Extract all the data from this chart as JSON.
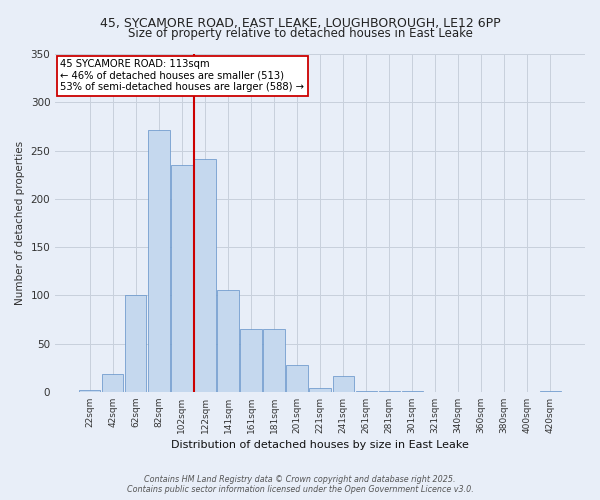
{
  "title1": "45, SYCAMORE ROAD, EAST LEAKE, LOUGHBOROUGH, LE12 6PP",
  "title2": "Size of property relative to detached houses in East Leake",
  "xlabel": "Distribution of detached houses by size in East Leake",
  "ylabel": "Number of detached properties",
  "bar_labels": [
    "22sqm",
    "42sqm",
    "62sqm",
    "82sqm",
    "102sqm",
    "122sqm",
    "141sqm",
    "161sqm",
    "181sqm",
    "201sqm",
    "221sqm",
    "241sqm",
    "261sqm",
    "281sqm",
    "301sqm",
    "321sqm",
    "340sqm",
    "360sqm",
    "380sqm",
    "400sqm",
    "420sqm"
  ],
  "bar_values": [
    2,
    18,
    100,
    271,
    235,
    241,
    105,
    65,
    65,
    28,
    4,
    16,
    1,
    1,
    1,
    0,
    0,
    0,
    0,
    0,
    1
  ],
  "bar_color": "#c5d8ee",
  "bar_edge_color": "#6090c8",
  "bg_color": "#e8eef8",
  "grid_color": "#c8d0dc",
  "annotation_text_line1": "45 SYCAMORE ROAD: 113sqm",
  "annotation_text_line2": "← 46% of detached houses are smaller (513)",
  "annotation_text_line3": "53% of semi-detached houses are larger (588) →",
  "red_line_color": "#cc0000",
  "annotation_box_color": "#ffffff",
  "annotation_box_edge": "#cc0000",
  "footnote1": "Contains HM Land Registry data © Crown copyright and database right 2025.",
  "footnote2": "Contains public sector information licensed under the Open Government Licence v3.0.",
  "ylim": [
    0,
    350
  ],
  "yticks": [
    0,
    50,
    100,
    150,
    200,
    250,
    300,
    350
  ],
  "red_line_index": 5
}
